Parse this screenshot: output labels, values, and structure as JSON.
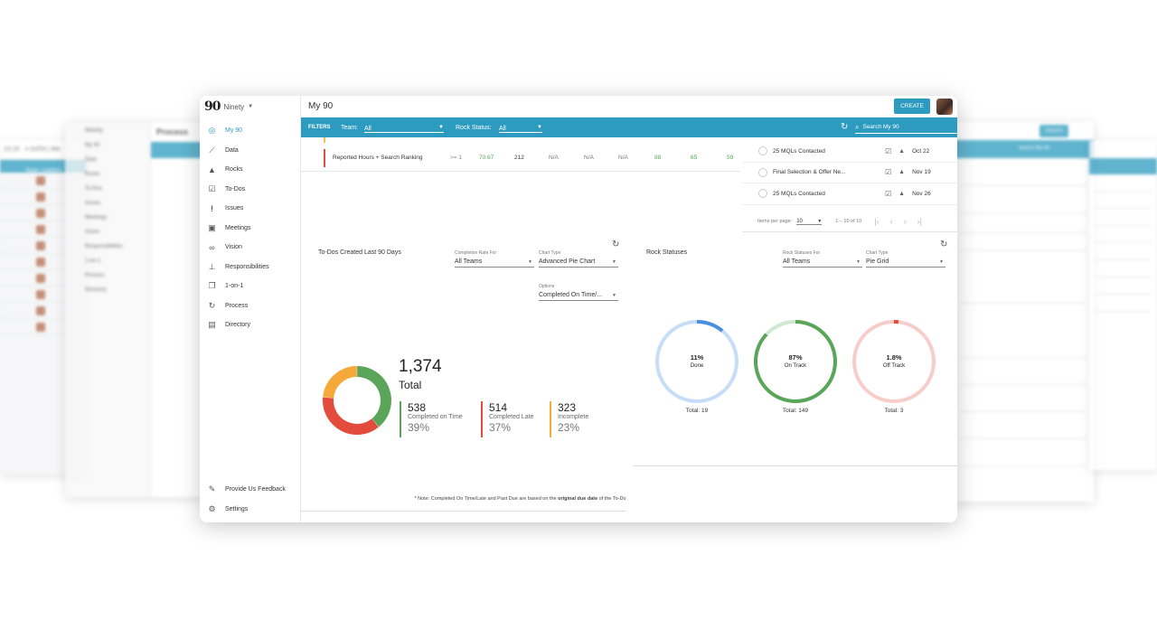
{
  "background": {
    "far_left_title": "DATA | We",
    "far_left_time": "23:15",
    "far_left_team": "Team: Leaders",
    "left_brand": "Ninety",
    "left_header": "Process",
    "left_nav": [
      "My 90",
      "Data",
      "Rocks",
      "To-Dos",
      "Issues",
      "Meetings",
      "Vision",
      "Responsibilities",
      "1-on-1",
      "Process",
      "Directory"
    ],
    "right_create": "CREATE",
    "right_search": "Search My 90"
  },
  "app": {
    "brand": "Ninety",
    "page_title": "My 90",
    "create_label": "CREATE"
  },
  "sidebar": {
    "items": [
      {
        "label": "My 90",
        "icon": "target-icon"
      },
      {
        "label": "Data",
        "icon": "chart-line-icon"
      },
      {
        "label": "Rocks",
        "icon": "mountain-icon"
      },
      {
        "label": "To-Dos",
        "icon": "checkbox-icon"
      },
      {
        "label": "Issues",
        "icon": "exclamation-icon"
      },
      {
        "label": "Meetings",
        "icon": "chat-icon"
      },
      {
        "label": "Vision",
        "icon": "binoculars-icon"
      },
      {
        "label": "Responsibilities",
        "icon": "org-chart-icon"
      },
      {
        "label": "1-on-1",
        "icon": "conversation-icon"
      },
      {
        "label": "Process",
        "icon": "cycle-icon"
      },
      {
        "label": "Directory",
        "icon": "contact-card-icon"
      }
    ],
    "bottom": [
      {
        "label": "Provide Us Feedback",
        "icon": "feedback-icon"
      },
      {
        "label": "Settings",
        "icon": "gear-icon"
      }
    ]
  },
  "filters": {
    "title": "FILTERS",
    "team_label": "Team:",
    "team_value": "All",
    "rock_status_label": "Rock Status:",
    "rock_status_value": "All",
    "search_placeholder": "Search My 90"
  },
  "metric_row": {
    "name": "Reported Hours + Search Ranking",
    "goal": ">= 1",
    "values": [
      "70.67",
      "212",
      "N/A",
      "N/A",
      "N/A",
      "88",
      "65",
      "59"
    ]
  },
  "rocks": [
    {
      "name": "25 MQLs Contacted",
      "due": "Oct 22"
    },
    {
      "name": "Final Selection & Offer Ne...",
      "due": "Nov 19"
    },
    {
      "name": "25 MQLs Contacted",
      "due": "Nov 26"
    }
  ],
  "pager": {
    "items_label": "Items per page:",
    "items_value": "10",
    "range": "1 – 10 of 10"
  },
  "todos_card": {
    "title": "To-Dos Created Last 90 Days",
    "completion_rate_label": "Completion Rate For",
    "completion_rate_value": "All Teams",
    "chart_type_label": "Chart Type",
    "chart_type_value": "Advanced Pie Chart",
    "options_label": "Options",
    "options_value": "Completed On Time/...",
    "total": "1,374",
    "total_label": "Total",
    "stats": [
      {
        "value": "538",
        "label": "Completed on Time",
        "percent": "39%",
        "color": "#5aa55a"
      },
      {
        "value": "514",
        "label": "Completed Late",
        "percent": "37%",
        "color": "#e34b3d"
      },
      {
        "value": "323",
        "label": "Incomplete",
        "percent": "23%",
        "color": "#f5a93a"
      }
    ],
    "note_prefix": "* Note: Completed On Time/Late and Past Due are based on the ",
    "note_bold": "original due date",
    "note_suffix": " of the To-Do"
  },
  "rock_statuses": {
    "title": "Rock Statuses",
    "for_label": "Rock Statuses For",
    "for_value": "All Teams",
    "chart_type_label": "Chart Type",
    "chart_type_value": "Pie Grid",
    "items": [
      {
        "percent": "11%",
        "label": "Done",
        "total": "Total: 19",
        "fraction": 0.11,
        "color": "#4a8fe0",
        "track": "#c7dcf7"
      },
      {
        "percent": "87%",
        "label": "On Track",
        "total": "Total: 149",
        "fraction": 0.87,
        "color": "#5aa55a",
        "track": "#cfe8cf"
      },
      {
        "percent": "1.8%",
        "label": "Off Track",
        "total": "Total: 3",
        "fraction": 0.018,
        "color": "#e34b3d",
        "track": "#f7cdc9"
      }
    ]
  },
  "chart_data": [
    {
      "type": "pie",
      "title": "To-Dos Created Last 90 Days",
      "categories": [
        "Completed on Time",
        "Completed Late",
        "Incomplete"
      ],
      "values": [
        538,
        514,
        323
      ],
      "total": 1374
    },
    {
      "type": "pie",
      "title": "Rock Statuses",
      "categories": [
        "Done",
        "On Track",
        "Off Track"
      ],
      "values": [
        0.11,
        0.87,
        0.018
      ],
      "totals": [
        19,
        149,
        3
      ]
    }
  ]
}
